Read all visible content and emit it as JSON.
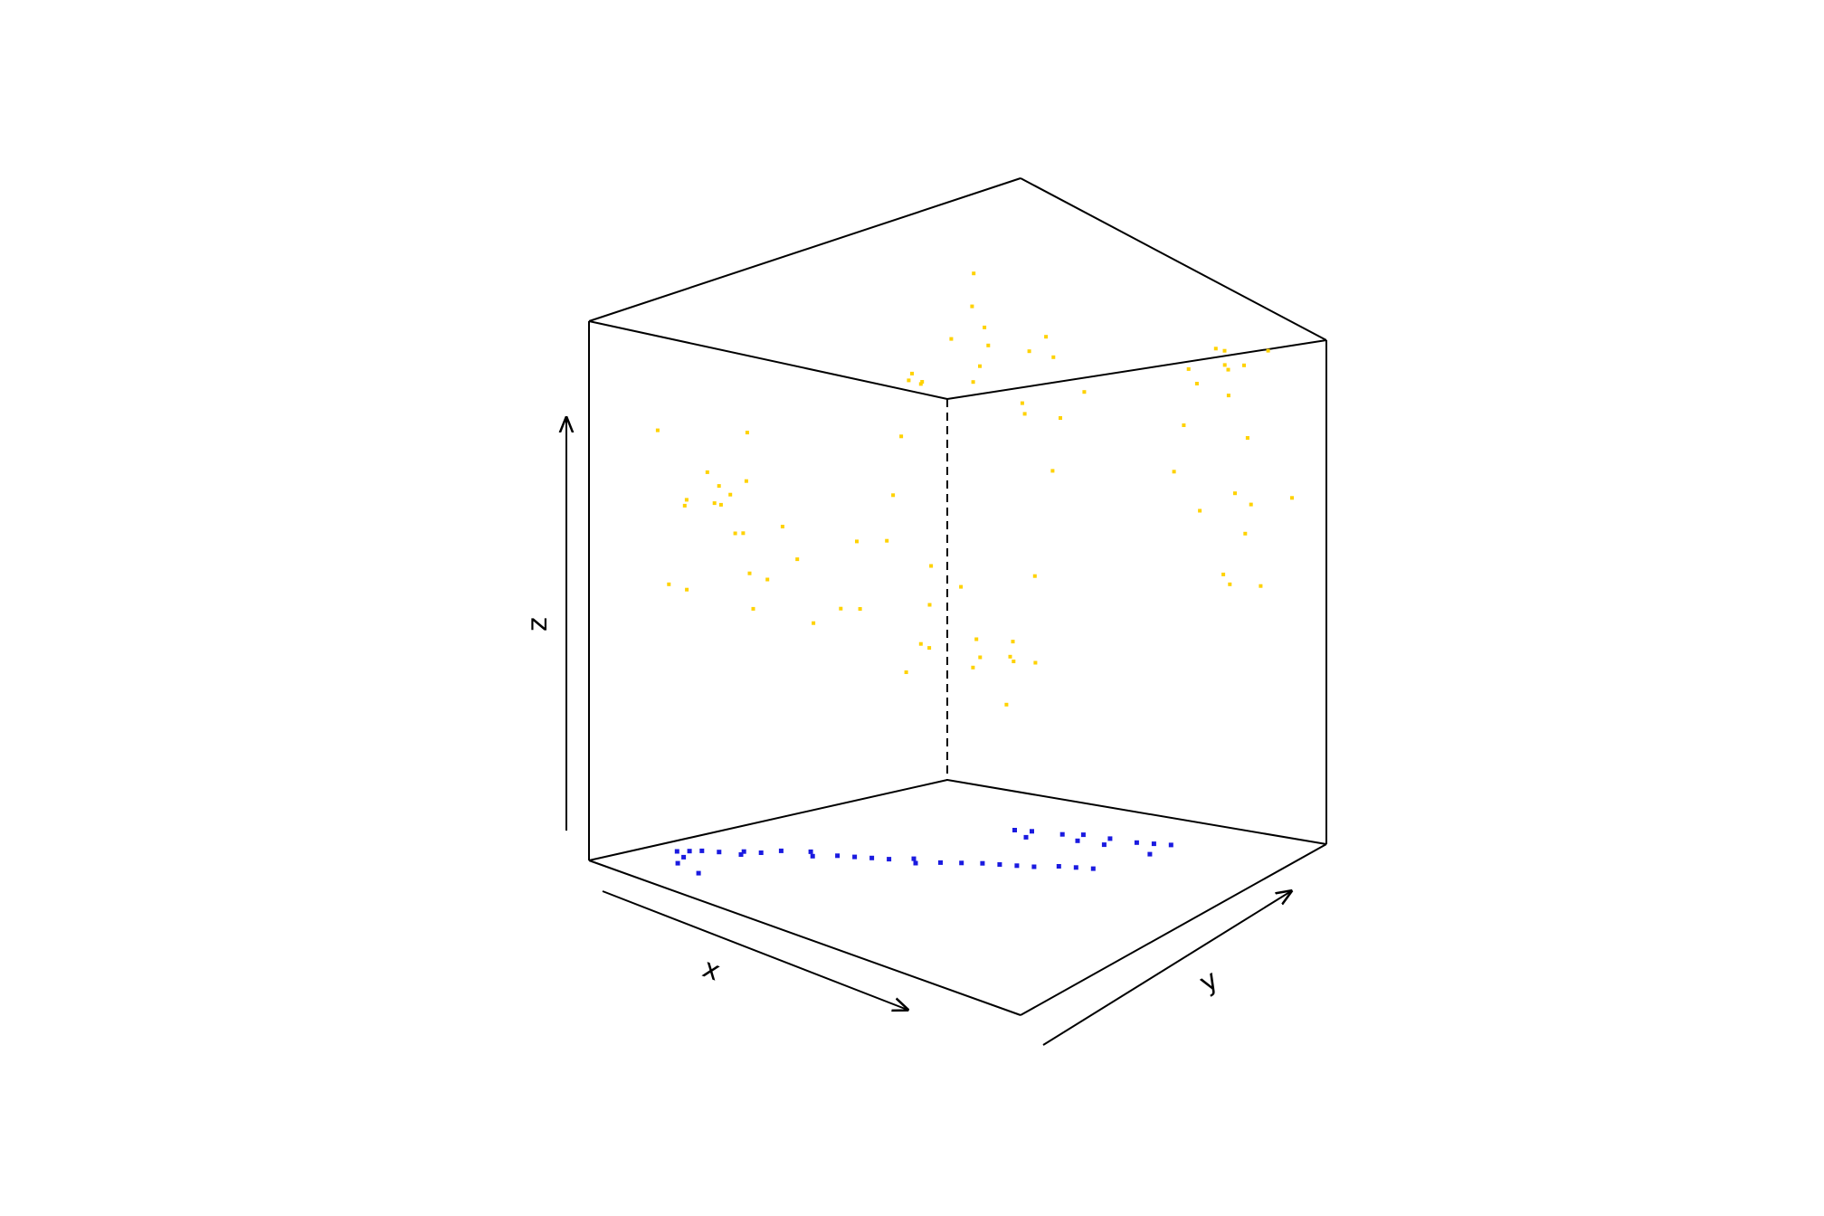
{
  "chart_data": {
    "type": "scatter",
    "view": "3d-box",
    "title": "",
    "xlabel": "x",
    "ylabel": "y",
    "zlabel": "z",
    "xlim": [
      0,
      1
    ],
    "ylim": [
      0,
      1
    ],
    "zlim": [
      0,
      1
    ],
    "grid": false,
    "legend": "none",
    "colors": {
      "points": "#FFD200",
      "projection": "#1A1AE0",
      "box": "#000000"
    },
    "series": [
      {
        "kind": "points-3d",
        "color": "#FFD200",
        "x": [
          0.5,
          0.38,
          0.42,
          0.58,
          0.62,
          0.55,
          0.33,
          0.47,
          0.51,
          0.66,
          0.72,
          0.45,
          0.29,
          0.36,
          0.6,
          0.53,
          0.44,
          0.68,
          0.4,
          0.57,
          0.08,
          0.12,
          0.18,
          0.22,
          0.27,
          0.15,
          0.1,
          0.2,
          0.25,
          0.3,
          0.35,
          0.14,
          0.06,
          0.09,
          0.17,
          0.23,
          0.28,
          0.11,
          0.19,
          0.26,
          0.85,
          0.88,
          0.92,
          0.8,
          0.9,
          0.95,
          0.83,
          0.87,
          0.78,
          0.93,
          0.97,
          0.82,
          0.89,
          0.91,
          0.86,
          0.79,
          0.94,
          0.84,
          0.96,
          0.81,
          0.3,
          0.38,
          0.45,
          0.52,
          0.6,
          0.68,
          0.75,
          0.35,
          0.48,
          0.55,
          0.63,
          0.7,
          0.42,
          0.58,
          0.65,
          0.33,
          0.5,
          0.72,
          0.4,
          0.62
        ],
        "y": [
          0.6,
          0.52,
          0.66,
          0.7,
          0.55,
          0.48,
          0.58,
          0.63,
          0.72,
          0.61,
          0.5,
          0.45,
          0.68,
          0.75,
          0.57,
          0.53,
          0.4,
          0.66,
          0.62,
          0.69,
          0.2,
          0.15,
          0.25,
          0.1,
          0.3,
          0.22,
          0.12,
          0.18,
          0.28,
          0.16,
          0.24,
          0.32,
          0.14,
          0.26,
          0.08,
          0.19,
          0.13,
          0.27,
          0.21,
          0.17,
          0.85,
          0.9,
          0.78,
          0.95,
          0.82,
          0.88,
          0.92,
          0.76,
          0.86,
          0.8,
          0.93,
          0.84,
          0.89,
          0.79,
          0.94,
          0.83,
          0.87,
          0.91,
          0.81,
          0.77,
          0.4,
          0.35,
          0.45,
          0.38,
          0.42,
          0.5,
          0.33,
          0.48,
          0.36,
          0.44,
          0.39,
          0.47,
          0.52,
          0.3,
          0.46,
          0.41,
          0.55,
          0.37,
          0.43,
          0.49
        ],
        "z": [
          0.88,
          0.8,
          0.92,
          0.84,
          0.78,
          0.86,
          0.74,
          0.9,
          0.82,
          0.76,
          0.7,
          0.83,
          0.68,
          0.94,
          0.79,
          0.87,
          0.72,
          0.81,
          0.85,
          0.89,
          0.5,
          0.55,
          0.45,
          0.6,
          0.4,
          0.52,
          0.35,
          0.58,
          0.48,
          0.42,
          0.3,
          0.65,
          0.7,
          0.56,
          0.38,
          0.62,
          0.44,
          0.53,
          0.47,
          0.33,
          0.9,
          0.85,
          0.95,
          0.8,
          0.88,
          0.92,
          0.75,
          0.86,
          0.82,
          0.6,
          0.55,
          0.5,
          0.45,
          0.4,
          0.65,
          0.7,
          0.35,
          0.3,
          0.58,
          0.62,
          0.25,
          0.3,
          0.2,
          0.35,
          0.28,
          0.22,
          0.32,
          0.4,
          0.18,
          0.38,
          0.26,
          0.45,
          0.15,
          0.5,
          0.24,
          0.42,
          0.12,
          0.34,
          0.55,
          0.1
        ]
      },
      {
        "kind": "floor-projection",
        "color": "#1A1AE0",
        "x": [
          0.08,
          0.1,
          0.12,
          0.14,
          0.16,
          0.18,
          0.2,
          0.22,
          0.24,
          0.26,
          0.3,
          0.32,
          0.36,
          0.4,
          0.44,
          0.48,
          0.52,
          0.56,
          0.6,
          0.64,
          0.68,
          0.72,
          0.76,
          0.8,
          0.84,
          0.88,
          0.92,
          0.96,
          0.5,
          0.54,
          0.58,
          0.62,
          0.66,
          0.7,
          0.74,
          0.78,
          0.82,
          0.86,
          0.9,
          0.94
        ],
        "y": [
          0.18,
          0.2,
          0.22,
          0.16,
          0.24,
          0.12,
          0.28,
          0.26,
          0.3,
          0.34,
          0.1,
          0.38,
          0.36,
          0.4,
          0.42,
          0.44,
          0.46,
          0.5,
          0.48,
          0.52,
          0.55,
          0.58,
          0.6,
          0.62,
          0.64,
          0.68,
          0.7,
          0.72,
          0.8,
          0.82,
          0.78,
          0.85,
          0.88,
          0.84,
          0.9,
          0.86,
          0.92,
          0.94,
          0.96,
          0.88
        ],
        "z": [
          0,
          0,
          0,
          0,
          0,
          0,
          0,
          0,
          0,
          0,
          0,
          0,
          0,
          0,
          0,
          0,
          0,
          0,
          0,
          0,
          0,
          0,
          0,
          0,
          0,
          0,
          0,
          0,
          0,
          0,
          0,
          0,
          0,
          0,
          0,
          0,
          0,
          0,
          0,
          0
        ]
      }
    ]
  }
}
